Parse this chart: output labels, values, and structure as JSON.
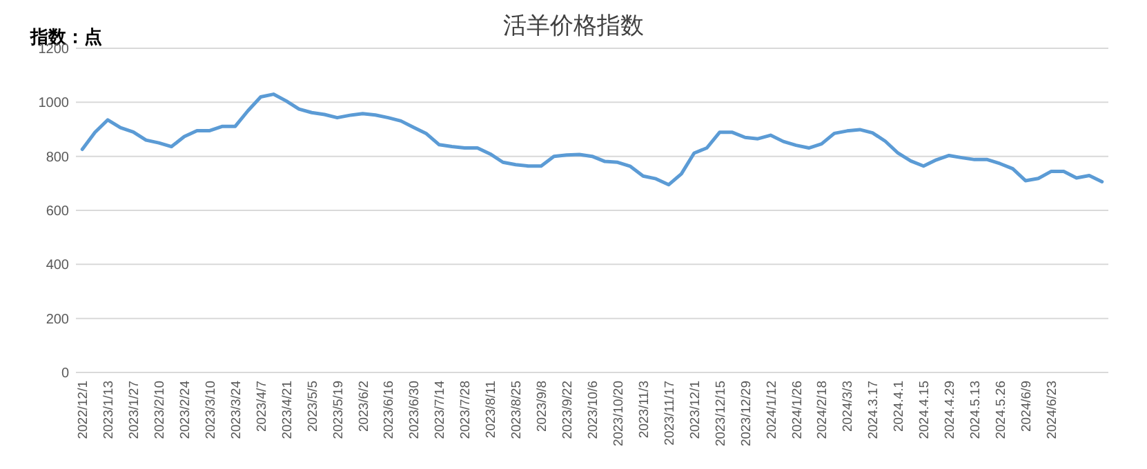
{
  "chart_data": {
    "type": "line",
    "title": "活羊价格指数",
    "ylabel": "指数：点",
    "categories": [
      "2022/12/1",
      null,
      "2023/1/13",
      null,
      "2023/1/27",
      null,
      "2023/2/10",
      null,
      "2023/2/24",
      null,
      "2023/3/10",
      null,
      "2023/3/24",
      null,
      "2023/4/7",
      null,
      "2023/4/21",
      null,
      "2023/5/5",
      null,
      "2023/5/19",
      null,
      "2023/6/2",
      null,
      "2023/6/16",
      null,
      "2023/6/30",
      null,
      "2023/7/14",
      null,
      "2023/7/28",
      null,
      "2023/8/11",
      null,
      "2023/8/25",
      null,
      "2023/9/8",
      null,
      "2023/9/22",
      null,
      "2023/10/6",
      null,
      "2023/10/20",
      null,
      "2023/11/3",
      null,
      "2023/11/17",
      null,
      "2023/12/1",
      null,
      "2023/12/15",
      null,
      "2023/12/29",
      null,
      "2024/1/12",
      null,
      "2024/1/26",
      null,
      "2024/2/18",
      null,
      "2024/3/3",
      null,
      "2024.3.17",
      null,
      "2024.4.1",
      null,
      "2024.4.15",
      null,
      "2024.4.29",
      null,
      "2024.5.13",
      null,
      "2024.5.26",
      null,
      "2024/6/9",
      null,
      "2024/6/23",
      null,
      null,
      null,
      null
    ],
    "series": [
      {
        "color": "#5b9bd5",
        "values": [
          826,
          889,
          935,
          906,
          890,
          860,
          850,
          836,
          873,
          895,
          895,
          911,
          911,
          969,
          1020,
          1030,
          1005,
          975,
          962,
          955,
          943,
          952,
          958,
          953,
          943,
          931,
          907,
          884,
          843,
          836,
          831,
          831,
          809,
          778,
          769,
          764,
          764,
          800,
          805,
          807,
          800,
          781,
          778,
          763,
          727,
          717,
          695,
          735,
          812,
          831,
          889,
          889,
          870,
          865,
          878,
          855,
          841,
          831,
          846,
          885,
          894,
          899,
          887,
          856,
          812,
          783,
          764,
          787,
          803,
          795,
          788,
          788,
          773,
          754,
          710,
          718,
          744,
          744,
          720,
          729,
          706
        ]
      }
    ],
    "ylim": [
      0,
      1200
    ],
    "yticks": [
      0,
      200,
      400,
      600,
      800,
      1000,
      1200
    ],
    "grid": "y",
    "marker": "none",
    "line_style": "solid"
  }
}
